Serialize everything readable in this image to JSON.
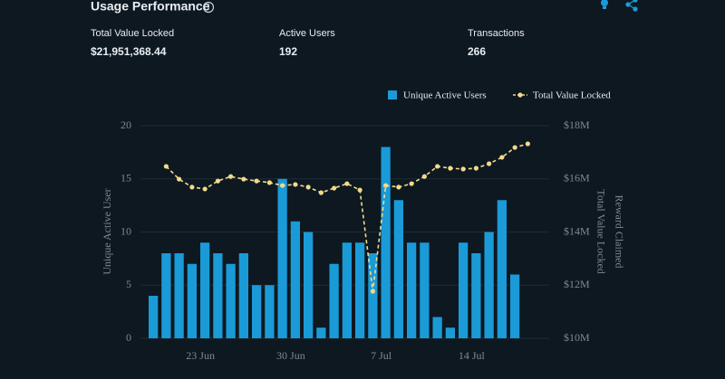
{
  "header": {
    "title": "Usage Performance"
  },
  "stats": [
    {
      "label": "Total Value Locked",
      "value": "$21,951,368.44"
    },
    {
      "label": "Active Users",
      "value": "192"
    },
    {
      "label": "Transactions",
      "value": "266"
    }
  ],
  "chart_data": {
    "type": "bar-line",
    "categories": [
      null,
      null,
      null,
      null,
      "23 Jun",
      null,
      null,
      null,
      null,
      null,
      null,
      "30 Jun",
      null,
      null,
      null,
      null,
      null,
      null,
      "7 Jul",
      null,
      null,
      null,
      null,
      null,
      null,
      "14 Jul",
      null,
      null,
      null
    ],
    "series": [
      {
        "name": "Unique Active Users",
        "type": "bar",
        "color": "#1a9bd8",
        "axis": "y",
        "values": [
          4,
          8,
          8,
          7,
          9,
          8,
          7,
          8,
          5,
          5,
          15,
          11,
          10,
          1,
          7,
          9,
          9,
          8,
          18,
          13,
          9,
          9,
          2,
          1,
          9,
          8,
          10,
          13,
          6
        ]
      },
      {
        "name": "Total Value Locked",
        "type": "line",
        "color": "#f1da8c",
        "axis": "y2",
        "values": [
          16470000,
          15990000,
          15690000,
          15620000,
          15920000,
          16090000,
          15990000,
          15920000,
          15860000,
          15750000,
          15790000,
          15690000,
          15480000,
          15650000,
          15820000,
          15580000,
          11770000,
          15750000,
          15690000,
          15820000,
          16090000,
          16470000,
          16400000,
          16370000,
          16400000,
          16570000,
          16810000,
          17180000,
          17320000
        ]
      }
    ],
    "ylabel": "Unique Active User",
    "y2label": "Total Value Locked",
    "y2label2": "Reward Claimed",
    "ylim": [
      0,
      20
    ],
    "yticks": [
      0,
      5,
      10,
      15,
      20
    ],
    "y2lim": [
      10000000,
      18000000
    ],
    "y2ticks": [
      {
        "value": 10000000,
        "label": "$10M"
      },
      {
        "value": 12000000,
        "label": "$12M"
      },
      {
        "value": 14000000,
        "label": "$14M"
      },
      {
        "value": 16000000,
        "label": "$16M"
      },
      {
        "value": 18000000,
        "label": "$18M"
      }
    ],
    "grid": true,
    "legend": "top"
  }
}
